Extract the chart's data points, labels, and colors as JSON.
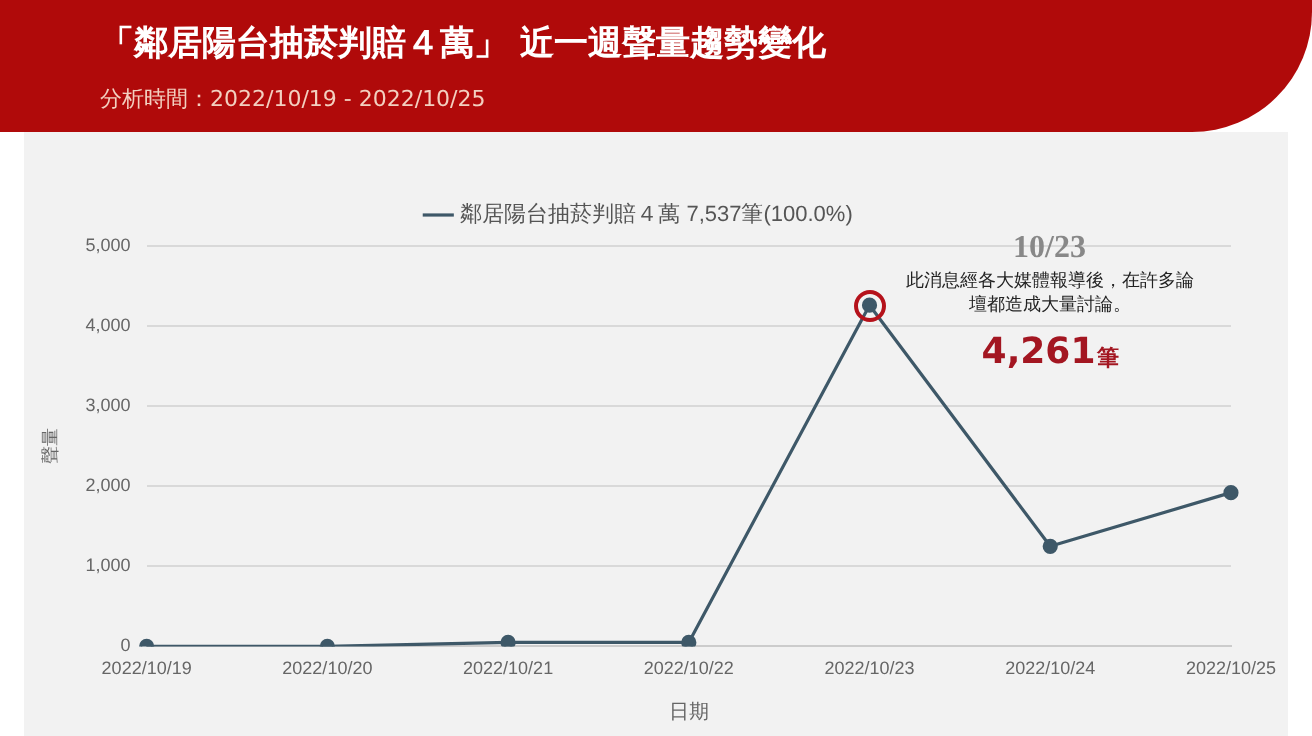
{
  "chart_data": {
    "type": "line",
    "title": "「鄰居陽台抽菸判賠４萬」 近一週聲量趨勢變化",
    "subtitle": "分析時間：2022/10/19 - 2022/10/25",
    "xlabel": "日期",
    "ylabel": "聲量",
    "categories": [
      "2022/10/19",
      "2022/10/20",
      "2022/10/21",
      "2022/10/22",
      "2022/10/23",
      "2022/10/24",
      "2022/10/25"
    ],
    "series": [
      {
        "name": "鄰居陽台抽菸判賠４萬 7,537筆(100.0%)",
        "color": "#3e5868",
        "values": [
          0,
          0,
          50,
          50,
          4261,
          1250,
          1920
        ]
      }
    ],
    "ylim": [
      0,
      5000
    ],
    "yticks": [
      {
        "value": 0,
        "label": "0"
      },
      {
        "value": 1000,
        "label": "1,000"
      },
      {
        "value": 2000,
        "label": "2,000"
      },
      {
        "value": 3000,
        "label": "3,000"
      },
      {
        "value": 4000,
        "label": "4,000"
      },
      {
        "value": 5000,
        "label": "5,000"
      }
    ],
    "grid": "y",
    "legend": "top",
    "marker": "circle",
    "line_style": "solid",
    "annotations": [
      "10/23",
      "此消息經各大媒體報導後，在許多論壇都造成大量討論。",
      "4,261筆"
    ]
  }
}
